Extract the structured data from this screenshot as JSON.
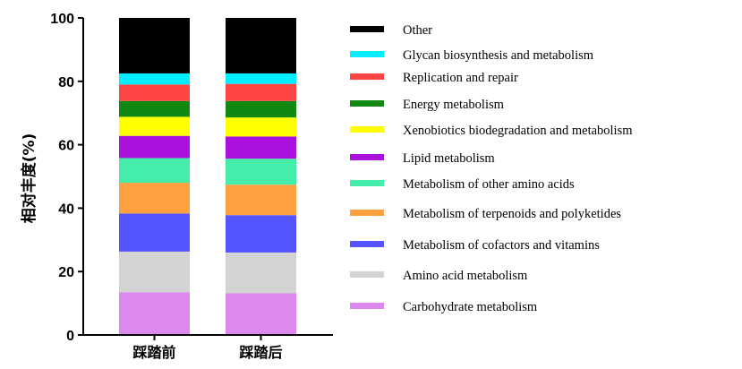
{
  "chart_data": {
    "type": "bar",
    "stacked": true,
    "ylabel": "相对丰度(%)",
    "ylim": [
      0,
      100
    ],
    "yticks": [
      0,
      20,
      40,
      60,
      80,
      100
    ],
    "categories": [
      "踩踏前",
      "踩踏后"
    ],
    "legend_position": "right",
    "series": [
      {
        "name": "Carbohydrate metabolism",
        "color": "#dd88ee",
        "values": [
          13.5,
          13.2
        ]
      },
      {
        "name": "Amino acid metabolism",
        "color": "#d3d3d3",
        "values": [
          12.8,
          12.8
        ]
      },
      {
        "name": "Metabolism of cofactors and vitamins",
        "color": "#5555ff",
        "values": [
          12.0,
          11.8
        ]
      },
      {
        "name": "Metabolism of terpenoids and polyketides",
        "color": "#ffa040",
        "values": [
          9.7,
          9.6
        ]
      },
      {
        "name": "Metabolism of other amino acids",
        "color": "#44eeaa",
        "values": [
          7.8,
          8.2
        ]
      },
      {
        "name": "Lipid metabolism",
        "color": "#aa11dd",
        "values": [
          7.0,
          7.0
        ]
      },
      {
        "name": "Xenobiotics biodegradation and metabolism",
        "color": "#ffff00",
        "values": [
          6.0,
          6.0
        ]
      },
      {
        "name": "Energy metabolism",
        "color": "#118811",
        "values": [
          5.0,
          5.2
        ]
      },
      {
        "name": "Replication and repair",
        "color": "#ff4444",
        "values": [
          5.2,
          5.4
        ]
      },
      {
        "name": "Glycan biosynthesis and metabolism",
        "color": "#00eeff",
        "values": [
          3.5,
          3.3
        ]
      },
      {
        "name": "Other",
        "color": "#000000",
        "values": [
          17.5,
          17.5
        ]
      }
    ]
  }
}
